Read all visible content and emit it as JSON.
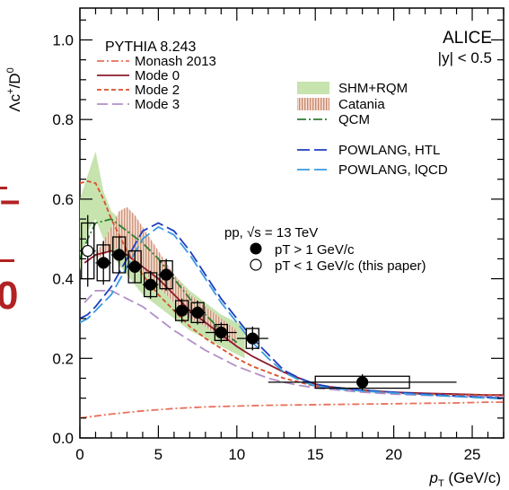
{
  "chart_data": {
    "type": "line",
    "ylabel_main": "Λc",
    "ylabel_sup": "+",
    "ylabel_rest": "/D",
    "ylabel_sup2": "0",
    "xlabel_main": "p",
    "xlabel_sub": "T",
    "xlabel_unit": " (GeV/c)",
    "xlim": [
      0,
      27
    ],
    "ylim": [
      0,
      1.08
    ],
    "xticks": [
      0,
      5,
      10,
      15,
      20,
      25
    ],
    "yticks": [
      0,
      0.2,
      0.4,
      0.6,
      0.8,
      1.0
    ],
    "xtick_labels": [
      "0",
      "5",
      "10",
      "15",
      "20",
      "25"
    ],
    "ytick_labels": [
      "0.0",
      "0.2",
      "0.4",
      "0.6",
      "0.8",
      "1.0"
    ],
    "experiment": "ALICE",
    "rapidity_cut": "|y| < 0.5",
    "generator": "PYTHIA 8.243",
    "system": "pp, √s = 13 TeV",
    "models": [
      {
        "name": "Monash 2013",
        "color": "#e8705a",
        "dash": "8 3 2 3",
        "x": [
          0,
          2,
          4,
          6,
          8,
          10,
          12,
          14,
          16,
          18,
          20,
          22,
          24,
          26,
          27
        ],
        "y": [
          0.05,
          0.06,
          0.068,
          0.074,
          0.078,
          0.08,
          0.082,
          0.083,
          0.084,
          0.085,
          0.086,
          0.087,
          0.088,
          0.09,
          0.09
        ]
      },
      {
        "name": "Mode 0",
        "color": "#8b1a2b",
        "dash": "",
        "x": [
          0.3,
          1,
          2,
          3,
          4,
          5,
          6,
          7,
          8,
          9,
          10,
          11,
          12,
          13,
          14,
          15,
          16,
          18,
          20,
          22,
          24,
          26,
          27
        ],
        "y": [
          0.44,
          0.46,
          0.47,
          0.46,
          0.43,
          0.4,
          0.36,
          0.32,
          0.29,
          0.26,
          0.23,
          0.205,
          0.185,
          0.165,
          0.15,
          0.135,
          0.128,
          0.12,
          0.115,
          0.112,
          0.11,
          0.108,
          0.108
        ]
      },
      {
        "name": "Mode 2",
        "color": "#d94f2a",
        "dash": "5 3",
        "x": [
          0,
          0.5,
          1,
          1.5,
          2,
          3,
          4,
          5,
          6,
          7,
          8,
          9,
          10,
          11,
          12,
          13,
          14,
          15,
          16,
          18,
          20,
          22,
          24,
          26,
          27
        ],
        "y": [
          0.64,
          0.645,
          0.64,
          0.6,
          0.55,
          0.47,
          0.41,
          0.36,
          0.32,
          0.28,
          0.25,
          0.225,
          0.2,
          0.18,
          0.165,
          0.15,
          0.14,
          0.13,
          0.125,
          0.118,
          0.113,
          0.11,
          0.108,
          0.107,
          0.106
        ]
      },
      {
        "name": "Mode 3",
        "color": "#b48fc8",
        "dash": "12 5",
        "x": [
          0.3,
          1,
          2,
          3,
          4,
          5,
          6,
          7,
          8,
          9,
          10,
          11,
          12,
          13,
          14,
          15,
          16,
          18,
          20,
          22,
          24,
          26,
          27
        ],
        "y": [
          0.34,
          0.37,
          0.37,
          0.35,
          0.33,
          0.3,
          0.27,
          0.245,
          0.22,
          0.2,
          0.18,
          0.165,
          0.15,
          0.14,
          0.132,
          0.126,
          0.122,
          0.115,
          0.11,
          0.107,
          0.105,
          0.104,
          0.103
        ]
      }
    ],
    "bands": [
      {
        "name": "SHM+RQM",
        "color": "#c7e3ae",
        "x": [
          0,
          0.5,
          1,
          1.5,
          2,
          3,
          4,
          5,
          6,
          7,
          8,
          9,
          10,
          10.5
        ],
        "ylow": [
          0.42,
          0.52,
          0.55,
          0.5,
          0.46,
          0.41,
          0.36,
          0.33,
          0.3,
          0.27,
          0.25,
          0.23,
          0.21,
          0.2
        ],
        "yhigh": [
          0.6,
          0.66,
          0.72,
          0.62,
          0.57,
          0.53,
          0.49,
          0.45,
          0.41,
          0.37,
          0.34,
          0.31,
          0.29,
          0.28
        ]
      },
      {
        "name": "Catania",
        "color": "#d89e88",
        "x": [
          1,
          2,
          2.5,
          3,
          3.5,
          4,
          5,
          6,
          7,
          8,
          9,
          10
        ],
        "ylow": [
          0.45,
          0.47,
          0.48,
          0.46,
          0.44,
          0.42,
          0.38,
          0.34,
          0.3,
          0.28,
          0.25,
          0.23
        ],
        "yhigh": [
          0.46,
          0.53,
          0.57,
          0.58,
          0.56,
          0.53,
          0.47,
          0.41,
          0.36,
          0.33,
          0.3,
          0.27
        ]
      }
    ],
    "curves": [
      {
        "name": "QCM",
        "color": "#2e7d32",
        "dash": "10 3 2 3",
        "x": [
          0,
          0.5,
          1,
          2,
          3,
          4,
          5,
          6,
          7,
          8,
          9,
          10
        ],
        "y": [
          0.45,
          0.5,
          0.54,
          0.55,
          0.52,
          0.49,
          0.45,
          0.4,
          0.35,
          0.31,
          0.27,
          0.24
        ]
      },
      {
        "name": "POWLANG, HTL",
        "color": "#1f3fbf",
        "dash": "14 5",
        "x": [
          0,
          0.5,
          1,
          2,
          3,
          4,
          5,
          6,
          7,
          8,
          9,
          10,
          11,
          12,
          13,
          14,
          15,
          16,
          18,
          20,
          22,
          24,
          26,
          27
        ],
        "y": [
          0.3,
          0.31,
          0.33,
          0.38,
          0.45,
          0.52,
          0.54,
          0.52,
          0.47,
          0.41,
          0.35,
          0.3,
          0.25,
          0.21,
          0.17,
          0.15,
          0.135,
          0.128,
          0.12,
          0.115,
          0.11,
          0.105,
          0.102,
          0.1
        ]
      },
      {
        "name": "POWLANG, lQCD",
        "color": "#3a9ae0",
        "dash": "14 5",
        "x": [
          0,
          0.5,
          1,
          2,
          3,
          4,
          5,
          6,
          7,
          8,
          9,
          10,
          11,
          12,
          13,
          14,
          15,
          16,
          18,
          20,
          22,
          24,
          26,
          27
        ],
        "y": [
          0.29,
          0.3,
          0.32,
          0.36,
          0.43,
          0.5,
          0.53,
          0.51,
          0.46,
          0.4,
          0.34,
          0.29,
          0.24,
          0.2,
          0.165,
          0.145,
          0.13,
          0.125,
          0.118,
          0.113,
          0.108,
          0.104,
          0.1,
          0.098
        ]
      }
    ],
    "data_filled": {
      "label": "pT > 1 GeV/c",
      "points": [
        {
          "x": 1.5,
          "y": 0.44,
          "xerr": 0.5,
          "stat": 0.055,
          "syst": 0.045
        },
        {
          "x": 2.5,
          "y": 0.46,
          "xerr": 0.5,
          "stat": 0.045,
          "syst": 0.045
        },
        {
          "x": 3.5,
          "y": 0.43,
          "xerr": 0.5,
          "stat": 0.04,
          "syst": 0.04
        },
        {
          "x": 4.5,
          "y": 0.385,
          "xerr": 0.5,
          "stat": 0.035,
          "syst": 0.03
        },
        {
          "x": 5.5,
          "y": 0.41,
          "xerr": 0.5,
          "stat": 0.04,
          "syst": 0.035
        },
        {
          "x": 6.5,
          "y": 0.32,
          "xerr": 0.5,
          "stat": 0.03,
          "syst": 0.025
        },
        {
          "x": 7.5,
          "y": 0.315,
          "xerr": 0.5,
          "stat": 0.03,
          "syst": 0.025
        },
        {
          "x": 9,
          "y": 0.265,
          "xerr": 1,
          "stat": 0.025,
          "syst": 0.02
        },
        {
          "x": 11,
          "y": 0.25,
          "xerr": 1,
          "stat": 0.03,
          "syst": 0.025
        },
        {
          "x": 18,
          "y": 0.14,
          "xerr": 6,
          "stat": 0.02,
          "syst": 0.015
        }
      ]
    },
    "data_open": {
      "label": "pT < 1 GeV/c (this paper)",
      "points": [
        {
          "x": 0.5,
          "y": 0.47,
          "xerr": 0.5,
          "stat": 0.09,
          "syst": 0.07
        }
      ]
    }
  }
}
